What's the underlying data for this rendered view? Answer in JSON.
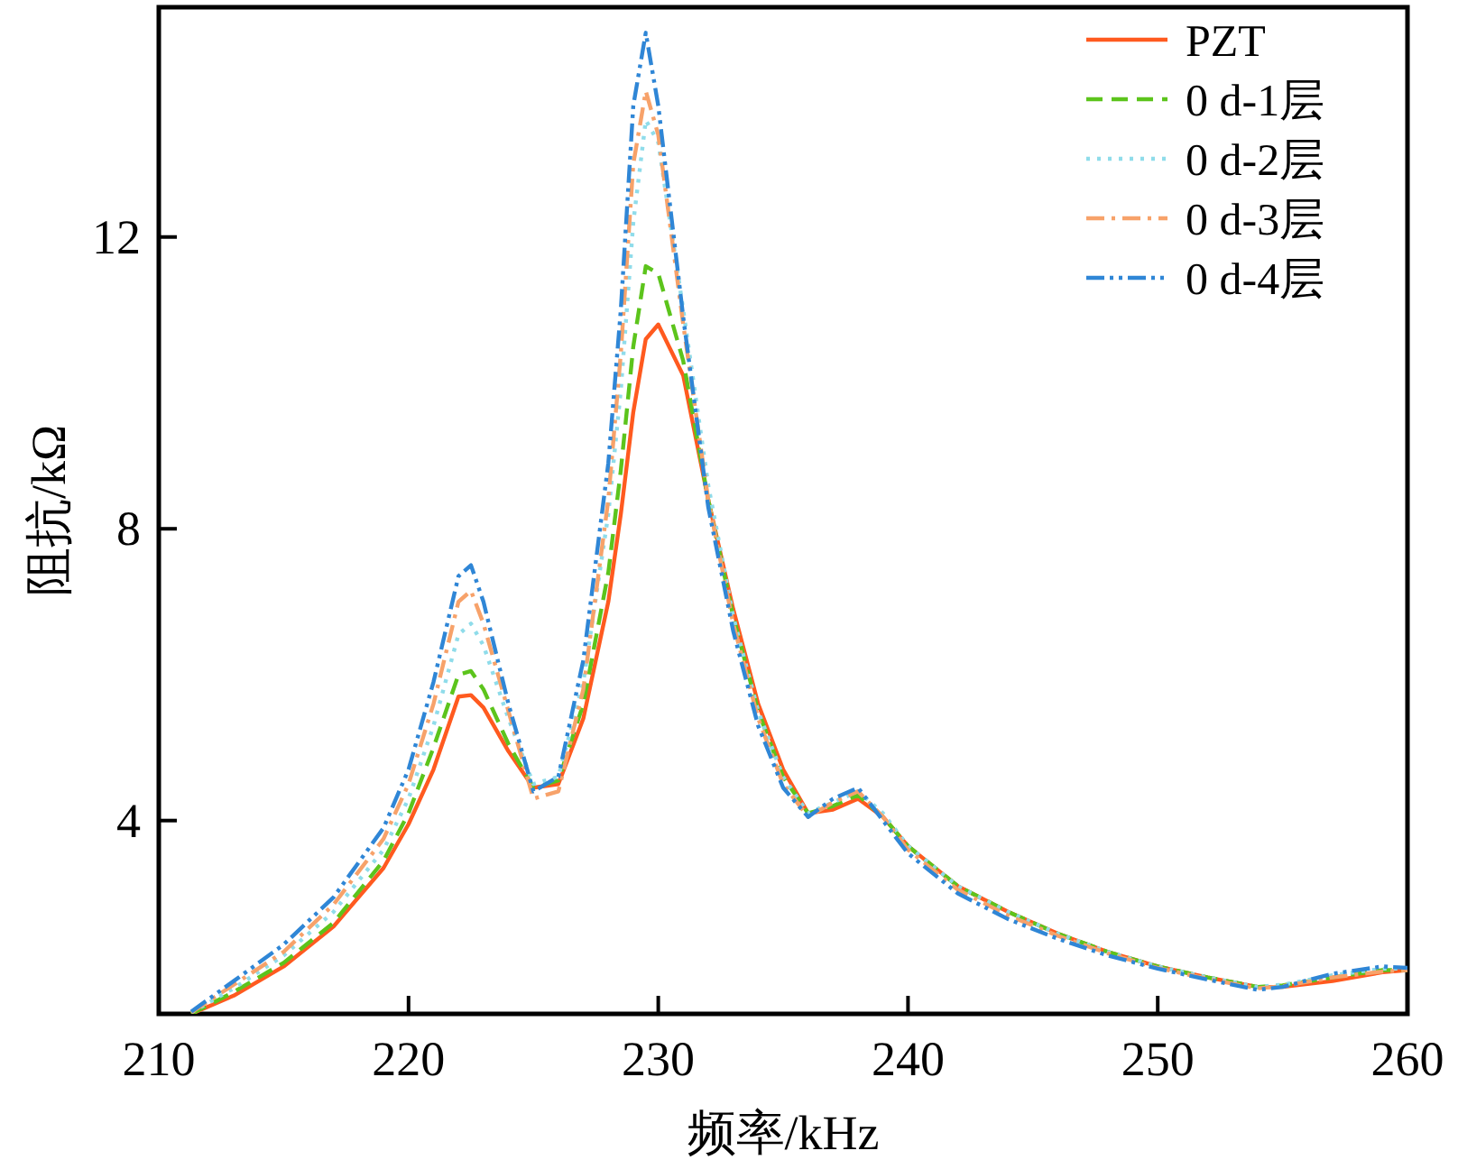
{
  "chart_data": {
    "type": "line",
    "xlabel": "频率/kHz",
    "ylabel": "阻抗/kΩ",
    "xlim": [
      210,
      260
    ],
    "ylim": [
      1.35,
      15.15
    ],
    "xticks": [
      210,
      220,
      230,
      240,
      250,
      260
    ],
    "yticks": [
      4,
      8,
      12
    ],
    "grid": false,
    "legend": "top right",
    "marker": "none",
    "x": [
      211.3,
      213,
      215,
      217,
      219,
      220,
      221,
      222,
      222.5,
      223,
      224,
      225,
      226,
      227,
      228,
      228.5,
      229,
      229.5,
      230,
      231,
      232,
      233,
      234,
      235,
      236,
      237,
      238,
      239,
      240,
      242,
      244,
      246,
      248,
      250,
      252,
      254,
      255,
      257,
      259,
      260
    ],
    "series": [
      {
        "name": "PZT",
        "color": "#ff5a1f",
        "line_style": "solid",
        "values": [
          1.35,
          1.6,
          2.0,
          2.55,
          3.35,
          3.95,
          4.7,
          5.7,
          5.72,
          5.55,
          4.95,
          4.45,
          4.5,
          5.4,
          7.0,
          8.2,
          9.6,
          10.6,
          10.8,
          10.1,
          8.4,
          6.9,
          5.6,
          4.7,
          4.1,
          4.15,
          4.3,
          4.05,
          3.65,
          3.1,
          2.75,
          2.45,
          2.2,
          2.0,
          1.85,
          1.72,
          1.72,
          1.8,
          1.92,
          1.95
        ]
      },
      {
        "name": "0 d-1层",
        "color": "#5cc41c",
        "line_style": "dashed",
        "values": [
          1.35,
          1.65,
          2.05,
          2.6,
          3.45,
          4.1,
          5.0,
          6.0,
          6.05,
          5.8,
          5.05,
          4.45,
          4.55,
          5.6,
          7.4,
          8.8,
          10.5,
          11.6,
          11.5,
          10.3,
          8.4,
          6.8,
          5.5,
          4.6,
          4.1,
          4.2,
          4.35,
          4.05,
          3.65,
          3.1,
          2.75,
          2.45,
          2.2,
          2.0,
          1.85,
          1.72,
          1.74,
          1.85,
          1.95,
          1.95
        ]
      },
      {
        "name": "0 d-2层",
        "color": "#8fdcea",
        "line_style": "dotted",
        "values": [
          1.37,
          1.7,
          2.15,
          2.75,
          3.6,
          4.3,
          5.3,
          6.55,
          6.7,
          6.4,
          5.4,
          4.5,
          4.6,
          5.9,
          8.2,
          9.9,
          12.2,
          13.6,
          13.3,
          11.0,
          8.6,
          6.8,
          5.5,
          4.6,
          4.1,
          4.25,
          4.4,
          4.1,
          3.65,
          3.1,
          2.75,
          2.45,
          2.2,
          2.0,
          1.85,
          1.72,
          1.75,
          1.88,
          1.97,
          1.97
        ]
      },
      {
        "name": "0 d-3层",
        "color": "#f7a26a",
        "line_style": "dashdot",
        "values": [
          1.37,
          1.75,
          2.2,
          2.85,
          3.75,
          4.5,
          5.6,
          7.0,
          7.15,
          6.7,
          5.5,
          4.3,
          4.4,
          5.8,
          8.4,
          10.4,
          13.0,
          14.0,
          13.4,
          10.8,
          8.4,
          6.7,
          5.4,
          4.5,
          4.05,
          4.25,
          4.4,
          4.05,
          3.6,
          3.05,
          2.7,
          2.42,
          2.18,
          1.98,
          1.83,
          1.7,
          1.73,
          1.85,
          1.93,
          1.95
        ]
      },
      {
        "name": "0 d-4层",
        "color": "#2f86d6",
        "line_style": "dashdotdot",
        "values": [
          1.38,
          1.8,
          2.3,
          2.95,
          3.9,
          4.7,
          5.9,
          7.35,
          7.5,
          7.0,
          5.6,
          4.4,
          4.6,
          6.2,
          8.9,
          11.0,
          13.8,
          14.8,
          13.8,
          10.9,
          8.3,
          6.6,
          5.3,
          4.45,
          4.05,
          4.3,
          4.45,
          4.0,
          3.55,
          3.0,
          2.65,
          2.38,
          2.15,
          1.97,
          1.82,
          1.68,
          1.72,
          1.9,
          2.0,
          1.98
        ]
      }
    ]
  }
}
